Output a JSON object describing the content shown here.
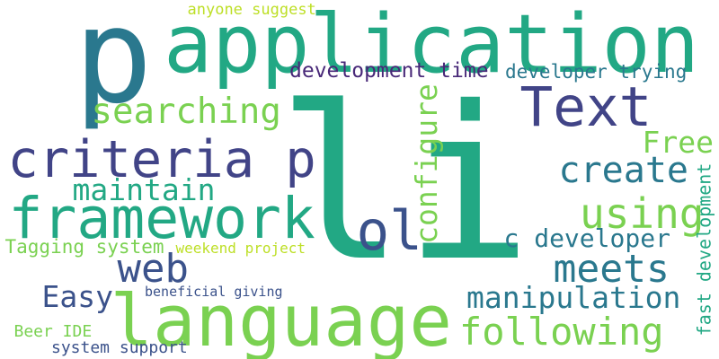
{
  "words": [
    {
      "text": "li",
      "color": "#22a884"
    },
    {
      "text": "p",
      "color": "#2a788e"
    },
    {
      "text": "application",
      "color": "#22a884"
    },
    {
      "text": "language",
      "color": "#7ad151"
    },
    {
      "text": "framework",
      "color": "#22a884"
    },
    {
      "text": "criteria p",
      "color": "#414487"
    },
    {
      "text": "Text",
      "color": "#414487"
    },
    {
      "text": "ol",
      "color": "#3b528b"
    },
    {
      "text": "searching",
      "color": "#7ad151"
    },
    {
      "text": "create",
      "color": "#2a788e"
    },
    {
      "text": "following",
      "color": "#7ad151"
    },
    {
      "text": "manipulation",
      "color": "#2a788e"
    },
    {
      "text": "meets",
      "color": "#2a788e"
    },
    {
      "text": "using",
      "color": "#7ad151"
    },
    {
      "text": "web",
      "color": "#3b528b"
    },
    {
      "text": "maintain",
      "color": "#22a884"
    },
    {
      "text": "Easy",
      "color": "#3b528b"
    },
    {
      "text": "Free",
      "color": "#7ad151"
    },
    {
      "text": "configure",
      "color": "#7ad151"
    },
    {
      "text": "c developer",
      "color": "#2a788e"
    },
    {
      "text": "developer trying",
      "color": "#2a788e"
    },
    {
      "text": "development time",
      "color": "#482878"
    },
    {
      "text": "fast development",
      "color": "#22a884"
    },
    {
      "text": "Tagging system",
      "color": "#7ad151"
    },
    {
      "text": "weekend project",
      "color": "#bddf26"
    },
    {
      "text": "anyone suggest",
      "color": "#bddf26"
    },
    {
      "text": "beneficial giving",
      "color": "#3b528b"
    },
    {
      "text": "Beer IDE",
      "color": "#7ad151"
    },
    {
      "text": "system support",
      "color": "#3b528b"
    }
  ]
}
